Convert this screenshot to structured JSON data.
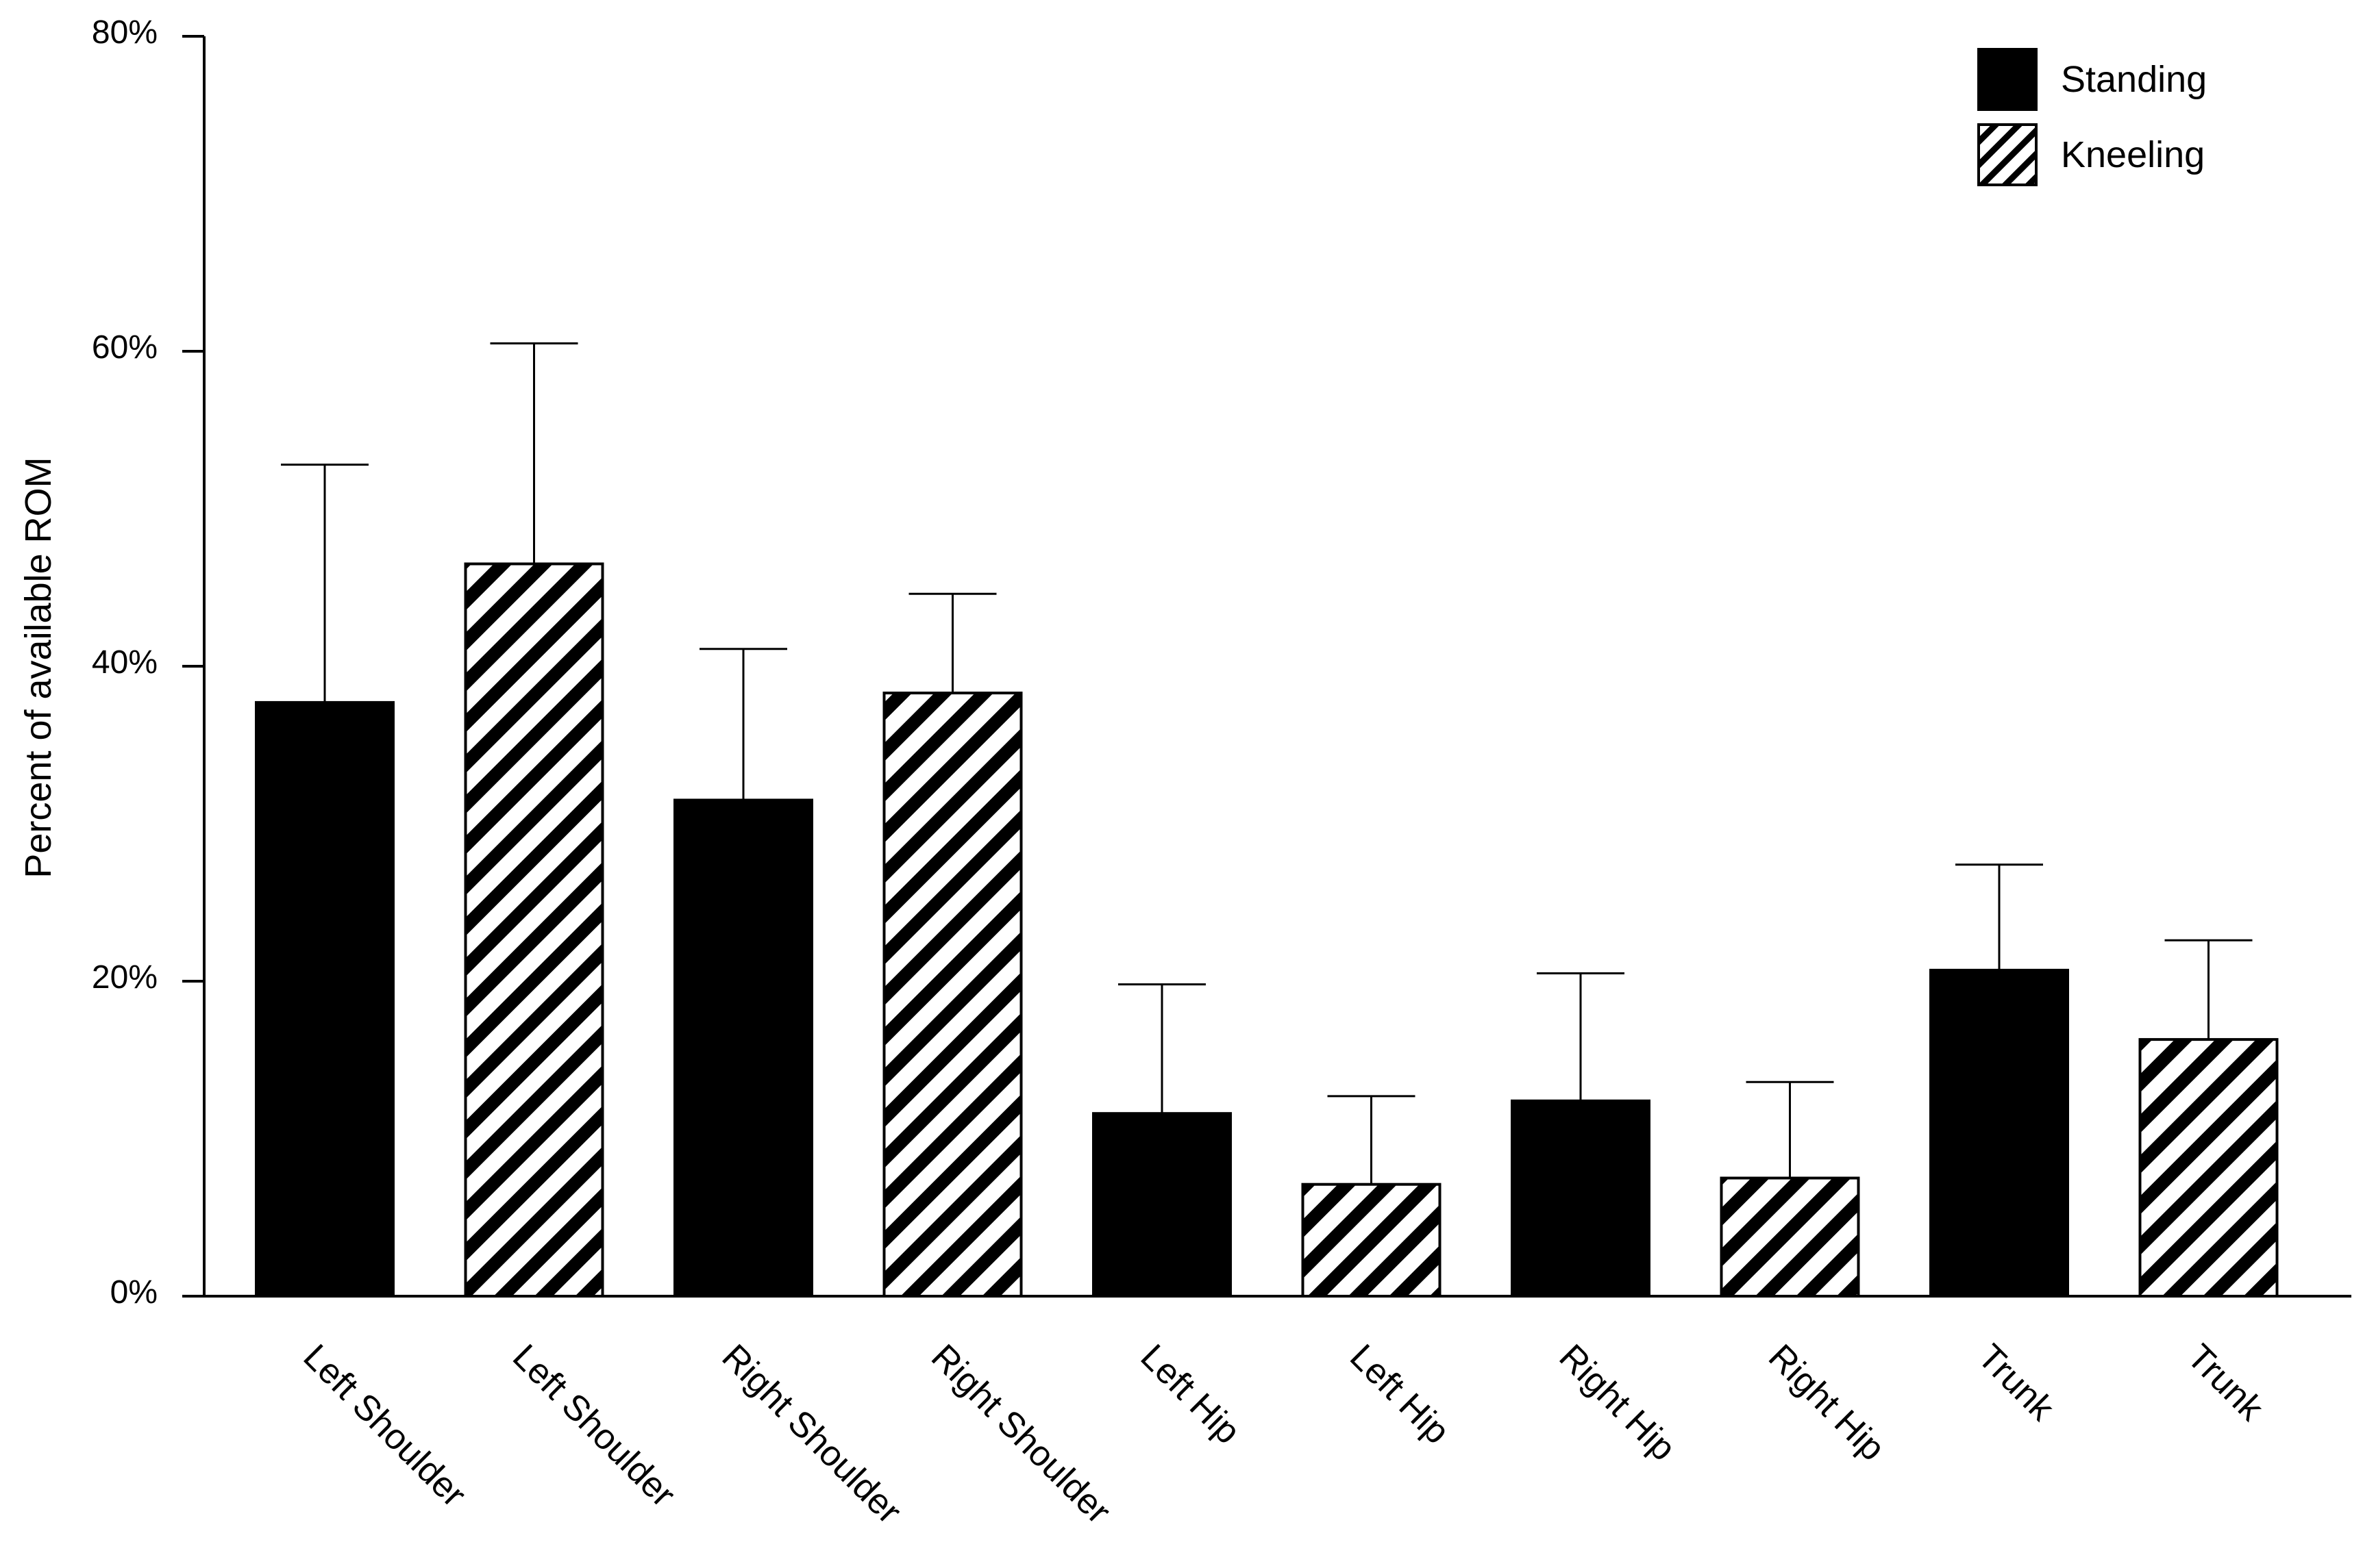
{
  "chart_data": {
    "type": "bar",
    "ylabel": "Percent of available ROM",
    "xlabel": "",
    "ylim": [
      0,
      80
    ],
    "yticks": [
      0,
      20,
      40,
      60,
      80
    ],
    "ytick_labels": [
      "0%",
      "20%",
      "40%",
      "60%",
      "80%"
    ],
    "categories": [
      "Left Shoulder",
      "Left Shoulder",
      "Right Shoulder",
      "Right Shoulder",
      "Left Hip",
      "Left Hip",
      "Right Hip",
      "Right Hip",
      "Trunk",
      "Trunk"
    ],
    "bar_series": [
      "Standing",
      "Kneeling",
      "Standing",
      "Kneeling",
      "Standing",
      "Kneeling",
      "Standing",
      "Kneeling",
      "Standing",
      "Kneeling"
    ],
    "values": [
      37.7,
      46.5,
      31.5,
      38.3,
      11.6,
      7.1,
      12.4,
      7.5,
      20.7,
      16.3
    ],
    "error_upper": [
      52.8,
      60.5,
      41.1,
      44.6,
      19.8,
      12.7,
      20.5,
      13.6,
      27.4,
      22.6
    ],
    "series": [
      {
        "name": "Standing",
        "fill": "solid",
        "color": "#000000"
      },
      {
        "name": "Kneeling",
        "fill": "diagonal-hatch",
        "color": "#000000"
      }
    ],
    "legend": {
      "position": "top-right",
      "items": [
        {
          "label": "Standing",
          "fill": "solid"
        },
        {
          "label": "Kneeling",
          "fill": "diagonal-hatch"
        }
      ]
    },
    "grid": false
  }
}
